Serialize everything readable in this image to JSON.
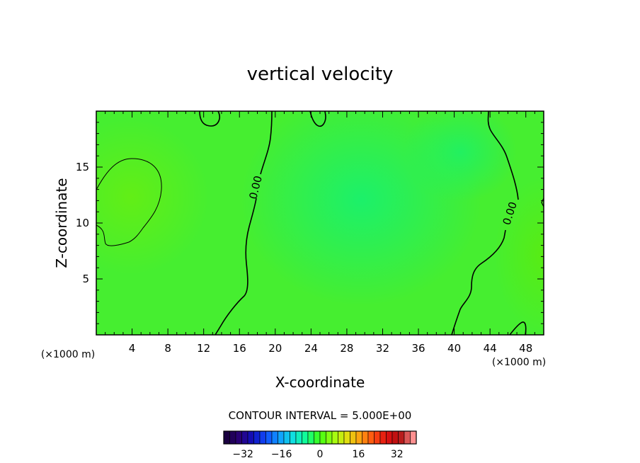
{
  "chart_data": {
    "type": "heatmap",
    "title": "vertical velocity",
    "xlabel": "X-coordinate",
    "ylabel": "Z-coordinate",
    "x_unit": "(×1000 m)",
    "xlim": [
      0,
      50
    ],
    "ylim": [
      0,
      20
    ],
    "x_ticks": [
      4,
      8,
      12,
      16,
      20,
      24,
      28,
      32,
      36,
      40,
      44,
      48
    ],
    "y_ticks": [
      5,
      10,
      15
    ],
    "contour_interval": "CONTOUR INTERVAL = 5.000E+00",
    "contour_label": "0.00",
    "colorbar": {
      "range": [
        -40,
        40
      ],
      "ticks": [
        -32,
        -16,
        0,
        16,
        32
      ],
      "colors": [
        "#1a0040",
        "#2a007a",
        "#1010c0",
        "#1050ff",
        "#10a0ff",
        "#10e0e0",
        "#10ff90",
        "#40ff10",
        "#a0ff10",
        "#e0e010",
        "#ffa010",
        "#ff5010",
        "#e01010",
        "#b01010",
        "#ff9090"
      ]
    },
    "field_notes": {
      "min_center": [
        29,
        12,
        -3.5
      ],
      "max_center": [
        4,
        13,
        3.5
      ]
    }
  }
}
